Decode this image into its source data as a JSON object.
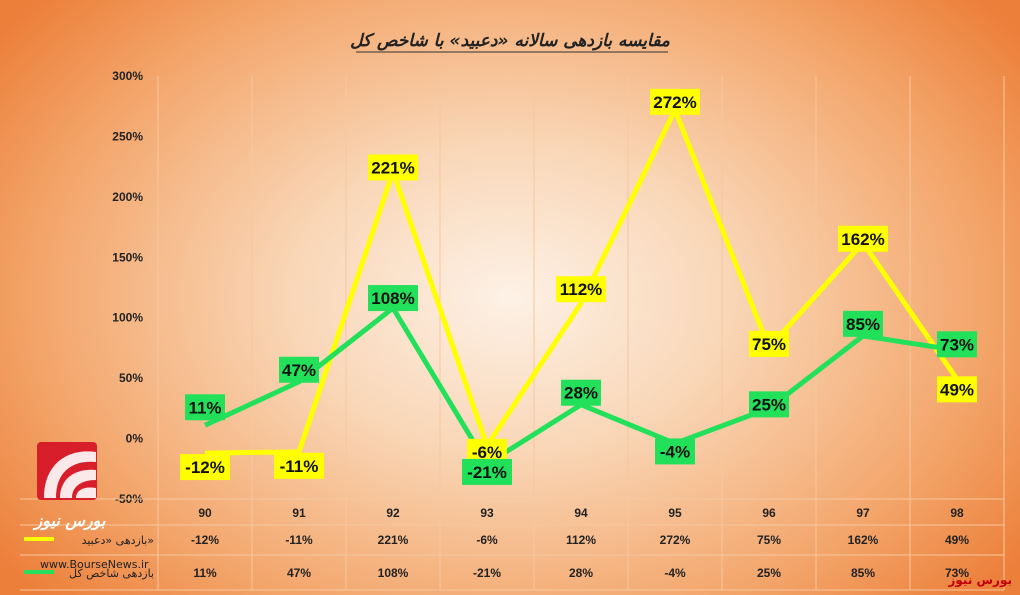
{
  "chart_data": {
    "type": "line",
    "title": "مقایسه بازدهی سالانه «دعبید» با شاخص کل",
    "categories": [
      "90",
      "91",
      "92",
      "93",
      "94",
      "95",
      "96",
      "97",
      "98"
    ],
    "ylim": [
      -50,
      300
    ],
    "yticks": [
      "300%",
      "250%",
      "200%",
      "150%",
      "100%",
      "50%",
      "0%",
      "-50%"
    ],
    "ytick_values": [
      300,
      250,
      200,
      150,
      100,
      50,
      0,
      -50
    ],
    "series": [
      {
        "name": "بازدهی «دعبید»",
        "color": "#ffff00",
        "values": [
          -12,
          -11,
          221,
          -6,
          112,
          272,
          75,
          162,
          49
        ],
        "labels": [
          "-12%",
          "-11%",
          "221%",
          "-6%",
          "112%",
          "272%",
          "75%",
          "162%",
          "49%"
        ]
      },
      {
        "name": "بازدهی شاخص کل",
        "color": "#22e05a",
        "values": [
          11,
          47,
          108,
          -21,
          28,
          -4,
          25,
          85,
          73
        ],
        "labels": [
          "11%",
          "47%",
          "108%",
          "-21%",
          "28%",
          "-4%",
          "25%",
          "85%",
          "73%"
        ]
      }
    ],
    "grid": true,
    "legend": "bottom-table"
  },
  "watermark": {
    "logo_text": "بورس نیوز",
    "site": "www.BourseNews.ir",
    "source": "بورس نیوز"
  }
}
